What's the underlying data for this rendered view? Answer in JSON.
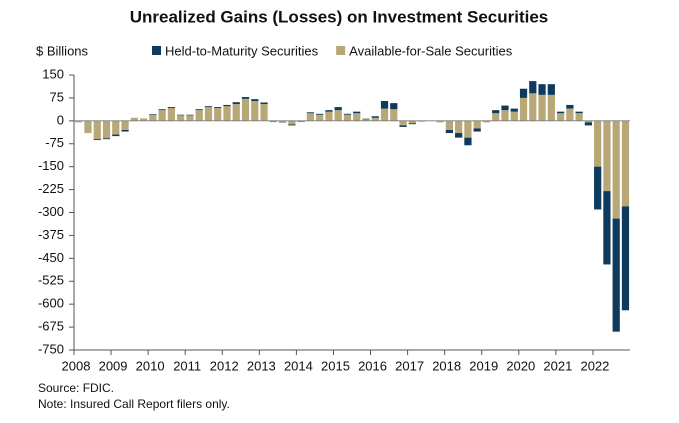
{
  "chart_data": {
    "type": "stacked_bar",
    "title": "Unrealized Gains (Losses) on Investment Securities",
    "y_label": "$ Billions",
    "source": "Source: FDIC.",
    "note": "Note: Insured Call Report filers only.",
    "categories": [
      "2008",
      null,
      null,
      null,
      "2009",
      null,
      null,
      null,
      "2010",
      null,
      null,
      null,
      "2011",
      null,
      null,
      null,
      "2012",
      null,
      null,
      null,
      "2013",
      null,
      null,
      null,
      "2014",
      null,
      null,
      null,
      "2015",
      null,
      null,
      null,
      "2016",
      null,
      null,
      null,
      "2017",
      null,
      null,
      null,
      "2018",
      null,
      null,
      null,
      "2019",
      null,
      null,
      null,
      "2020",
      null,
      null,
      null,
      "2021",
      null,
      null,
      null,
      "2022",
      null,
      null,
      null
    ],
    "series": [
      {
        "name": "Held-to-Maturity Securities",
        "color": "#0e3a5e",
        "values": [
          0,
          0,
          -3,
          -3,
          -5,
          -5,
          0,
          0,
          2,
          3,
          3,
          2,
          2,
          3,
          3,
          3,
          4,
          6,
          6,
          6,
          5,
          -1,
          -1,
          -3,
          -1,
          3,
          3,
          5,
          10,
          3,
          5,
          2,
          5,
          25,
          20,
          -5,
          -3,
          0,
          0,
          0,
          -10,
          -15,
          -25,
          -10,
          0,
          10,
          15,
          10,
          30,
          40,
          35,
          35,
          5,
          12,
          5,
          -10,
          -140,
          -240,
          -370,
          -340
        ]
      },
      {
        "name": "Available-for-Sale Securities",
        "color": "#b8a878",
        "values": [
          -5,
          -40,
          -60,
          -57,
          -45,
          -30,
          10,
          8,
          20,
          35,
          42,
          18,
          18,
          35,
          45,
          42,
          48,
          55,
          72,
          65,
          55,
          -3,
          -5,
          -12,
          -3,
          25,
          20,
          30,
          35,
          20,
          25,
          5,
          10,
          40,
          38,
          -15,
          -8,
          -3,
          0,
          -5,
          -30,
          -40,
          -55,
          -25,
          -5,
          25,
          35,
          30,
          75,
          90,
          85,
          85,
          25,
          40,
          25,
          -5,
          -150,
          -230,
          -320,
          -280
        ]
      }
    ],
    "ylim": [
      -750,
      150
    ],
    "yticks": [
      150,
      75,
      0,
      -75,
      -150,
      -225,
      -300,
      -375,
      -450,
      -525,
      -600,
      -675,
      -750
    ],
    "legend": "top"
  }
}
